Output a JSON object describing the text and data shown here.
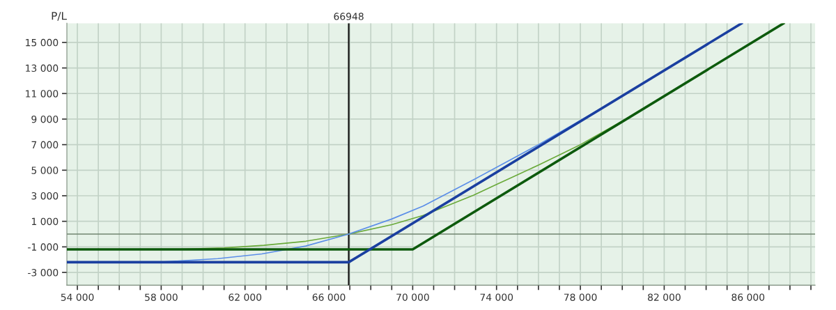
{
  "chart_data": {
    "type": "line",
    "ylabel": "P/L",
    "xlim": [
      53500,
      89200
    ],
    "ylim": [
      -4000,
      16500
    ],
    "xticks": [
      {
        "value": 54000,
        "label": "54 000"
      },
      {
        "value": 55000,
        "label": null
      },
      {
        "value": 56000,
        "label": null
      },
      {
        "value": 57000,
        "label": null
      },
      {
        "value": 58000,
        "label": "58 000"
      },
      {
        "value": 59000,
        "label": null
      },
      {
        "value": 60000,
        "label": null
      },
      {
        "value": 61000,
        "label": null
      },
      {
        "value": 62000,
        "label": "62 000"
      },
      {
        "value": 63000,
        "label": null
      },
      {
        "value": 64000,
        "label": null
      },
      {
        "value": 65000,
        "label": null
      },
      {
        "value": 66000,
        "label": "66 000"
      },
      {
        "value": 67000,
        "label": null
      },
      {
        "value": 68000,
        "label": null
      },
      {
        "value": 69000,
        "label": null
      },
      {
        "value": 70000,
        "label": "70 000"
      },
      {
        "value": 71000,
        "label": null
      },
      {
        "value": 72000,
        "label": null
      },
      {
        "value": 73000,
        "label": null
      },
      {
        "value": 74000,
        "label": "74 000"
      },
      {
        "value": 75000,
        "label": null
      },
      {
        "value": 76000,
        "label": null
      },
      {
        "value": 77000,
        "label": null
      },
      {
        "value": 78000,
        "label": "78 000"
      },
      {
        "value": 79000,
        "label": null
      },
      {
        "value": 80000,
        "label": null
      },
      {
        "value": 81000,
        "label": null
      },
      {
        "value": 82000,
        "label": "82 000"
      },
      {
        "value": 83000,
        "label": null
      },
      {
        "value": 84000,
        "label": null
      },
      {
        "value": 85000,
        "label": null
      },
      {
        "value": 86000,
        "label": "86 000"
      },
      {
        "value": 87000,
        "label": null
      },
      {
        "value": 88000,
        "label": null
      },
      {
        "value": 89000,
        "label": null
      }
    ],
    "yticks": [
      {
        "value": -3000,
        "label": "-3 000"
      },
      {
        "value": -1000,
        "label": "-1 000"
      },
      {
        "value": 1000,
        "label": "1 000"
      },
      {
        "value": 3000,
        "label": "3 000"
      },
      {
        "value": 5000,
        "label": "5 000"
      },
      {
        "value": 7000,
        "label": "7 000"
      },
      {
        "value": 9000,
        "label": "9 000"
      },
      {
        "value": 11000,
        "label": "11 000"
      },
      {
        "value": 13000,
        "label": "13 000"
      },
      {
        "value": 15000,
        "label": "15 000"
      }
    ],
    "grid": true,
    "marker": "none",
    "line_style": "solid",
    "ref_lines": [
      {
        "axis": "x",
        "value": 66948,
        "label": "66948",
        "color": "#111111"
      },
      {
        "axis": "y",
        "value": 0,
        "label": null,
        "color": "#6f846f"
      }
    ],
    "series": [
      {
        "color": "#6aaa3a",
        "x": [
          53500,
          59000,
          61000,
          62900,
          64900,
          66948,
          69000,
          70500,
          72900,
          74000,
          76000,
          78000,
          80000,
          87700
        ],
        "values": [
          -1200,
          -1180,
          -1080,
          -880,
          -560,
          0,
          740,
          1460,
          3040,
          3880,
          5400,
          7000,
          8850,
          16500
        ]
      },
      {
        "color": "#5b8ee8",
        "x": [
          53500,
          58000,
          60700,
          62800,
          64900,
          66948,
          69000,
          70500,
          73000,
          76000,
          79000,
          85700
        ],
        "values": [
          -2200,
          -2190,
          -1920,
          -1550,
          -930,
          0,
          1180,
          2200,
          4340,
          7000,
          9850,
          16500
        ]
      },
      {
        "color": "#0d5a0d",
        "x": [
          53500,
          70000,
          87700
        ],
        "values": [
          -1200,
          -1200,
          16500
        ]
      },
      {
        "color": "#1a3fa0",
        "x": [
          53500,
          66948,
          85700
        ],
        "values": [
          -2200,
          -2200,
          16500
        ]
      }
    ]
  }
}
